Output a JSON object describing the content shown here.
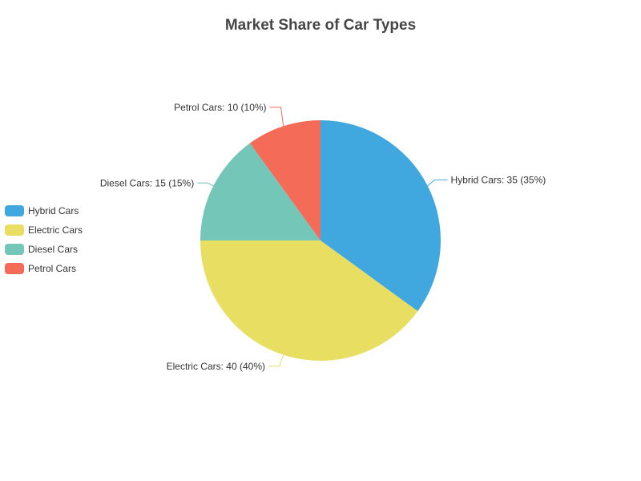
{
  "chart_data": {
    "type": "pie",
    "title": "Market Share of Car Types",
    "legend_position": "left",
    "slices": [
      {
        "name": "Hybrid Cars",
        "value": 35,
        "label": "Hybrid Cars: 35 (35%)",
        "color": "#41a8df"
      },
      {
        "name": "Electric Cars",
        "value": 40,
        "label": "Electric Cars: 40 (40%)",
        "color": "#e8df62"
      },
      {
        "name": "Diesel Cars",
        "value": 15,
        "label": "Diesel Cars: 15 (15%)",
        "color": "#74c6b8"
      },
      {
        "name": "Petrol Cars",
        "value": 10,
        "label": "Petrol Cars: 10 (10%)",
        "color": "#f46c58"
      }
    ]
  }
}
